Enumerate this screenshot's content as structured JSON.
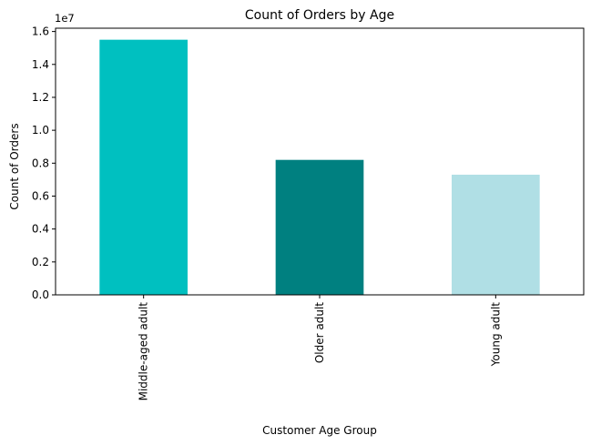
{
  "chart_data": {
    "type": "bar",
    "title": "Count of Orders by Age",
    "xlabel": "Customer Age Group",
    "ylabel": "Count of Orders",
    "offset_label": "1e7",
    "categories": [
      "Middle-aged adult",
      "Older adult",
      "Young adult"
    ],
    "values": [
      15500000,
      8200000,
      7300000
    ],
    "colors": [
      "#00c0c0",
      "#008080",
      "#b0dfe5"
    ],
    "ylim": [
      0,
      16200000
    ],
    "yticks": [
      0,
      2000000,
      4000000,
      6000000,
      8000000,
      10000000,
      12000000,
      14000000,
      16000000
    ],
    "ytick_labels": [
      "0.0",
      "0.2",
      "0.4",
      "0.6",
      "0.8",
      "1.0",
      "1.2",
      "1.4",
      "1.6"
    ],
    "xtick_rotation": "vertical",
    "grid": false,
    "legend": "none"
  }
}
